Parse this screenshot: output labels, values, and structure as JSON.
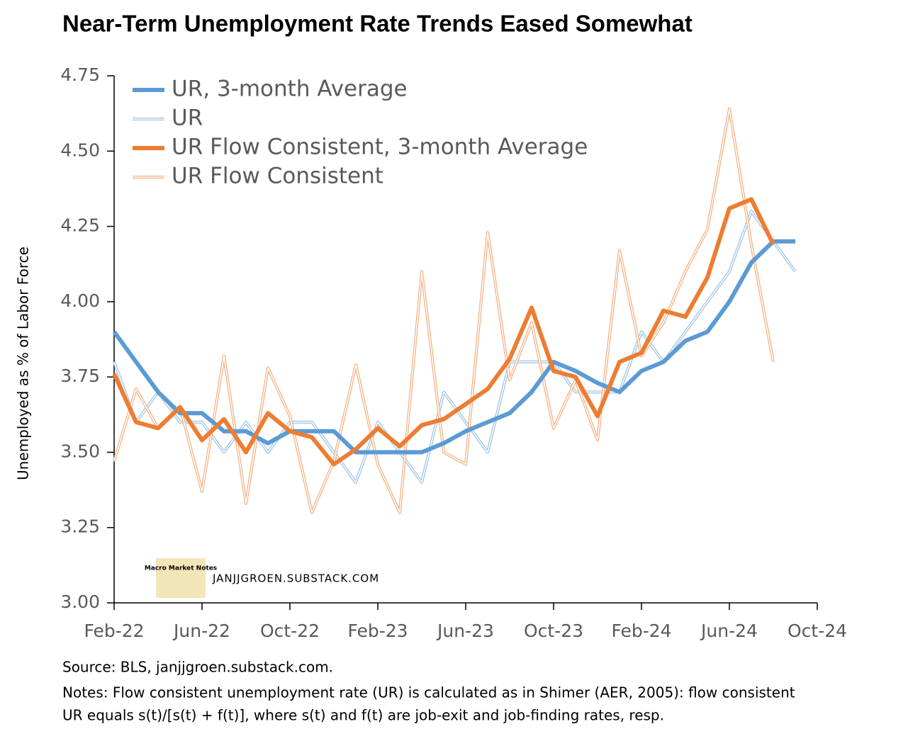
{
  "chart_data": {
    "type": "line",
    "title": "Near-Term Unemployment Rate Trends Eased Somewhat",
    "y_label": "Unemployed as % of Labor Force",
    "categories": [
      "Feb-22",
      null,
      null,
      null,
      "Jun-22",
      null,
      null,
      null,
      "Oct-22",
      null,
      null,
      null,
      "Feb-23",
      null,
      null,
      null,
      "Jun-23",
      null,
      null,
      null,
      "Oct-23",
      null,
      null,
      null,
      "Feb-24",
      null,
      null,
      null,
      "Jun-24",
      null,
      null,
      null,
      "Oct-24"
    ],
    "series": [
      {
        "name": "UR, 3-month Average",
        "color": "#5b9bd5",
        "style": "thick",
        "values": [
          3.9,
          3.8,
          3.7,
          3.63,
          3.63,
          3.57,
          3.57,
          3.53,
          3.57,
          3.57,
          3.57,
          3.5,
          3.5,
          3.5,
          3.5,
          3.53,
          3.57,
          3.6,
          3.63,
          3.7,
          3.8,
          3.77,
          3.73,
          3.7,
          3.77,
          3.8,
          3.87,
          3.9,
          4.0,
          4.13,
          4.2,
          4.2,
          null
        ]
      },
      {
        "name": "UR",
        "color": "#9dc3e6",
        "style": "thin",
        "values": [
          3.8,
          3.6,
          3.7,
          3.6,
          3.6,
          3.5,
          3.6,
          3.5,
          3.6,
          3.6,
          3.5,
          3.4,
          3.6,
          3.5,
          3.4,
          3.7,
          3.6,
          3.5,
          3.8,
          3.8,
          3.8,
          3.7,
          3.7,
          3.7,
          3.9,
          3.8,
          3.9,
          4.0,
          4.1,
          4.3,
          4.2,
          4.1,
          null
        ]
      },
      {
        "name": "UR Flow Consistent, 3-month Average",
        "color": "#ed7d31",
        "style": "thick",
        "values": [
          3.76,
          3.6,
          3.58,
          3.65,
          3.54,
          3.61,
          3.5,
          3.63,
          3.57,
          3.55,
          3.46,
          3.51,
          3.58,
          3.52,
          3.59,
          3.61,
          3.66,
          3.71,
          3.81,
          3.98,
          3.77,
          3.75,
          3.62,
          3.8,
          3.83,
          3.97,
          3.95,
          4.08,
          4.31,
          4.34,
          4.19,
          null,
          null
        ]
      },
      {
        "name": "UR Flow Consistent",
        "color": "#f4b183",
        "style": "thin",
        "values": [
          3.47,
          3.71,
          3.58,
          3.65,
          3.37,
          3.82,
          3.33,
          3.78,
          3.62,
          3.3,
          3.47,
          3.79,
          3.46,
          3.3,
          4.1,
          3.5,
          3.46,
          4.23,
          3.74,
          3.93,
          3.58,
          3.74,
          3.54,
          4.17,
          3.82,
          3.93,
          4.1,
          4.24,
          4.64,
          4.19,
          3.8,
          null,
          null
        ]
      }
    ],
    "ylim": [
      3.0,
      4.75
    ],
    "yticks": [
      {
        "value": 3.0,
        "label": "3.00"
      },
      {
        "value": 3.25,
        "label": "3.25"
      },
      {
        "value": 3.5,
        "label": "3.50"
      },
      {
        "value": 3.75,
        "label": "3.75"
      },
      {
        "value": 4.0,
        "label": "4.00"
      },
      {
        "value": 4.25,
        "label": "4.25"
      },
      {
        "value": 4.5,
        "label": "4.50"
      },
      {
        "value": 4.75,
        "label": "4.75"
      }
    ],
    "legend": "upper left",
    "watermark": "JANJJGROEN.SUBSTACK.COM",
    "logo_text": "Macro Market Notes",
    "source": "Source: BLS, janjjgroen.substack.com.",
    "notes": [
      "Notes: Flow consistent unemployment rate (UR) is calculated as in Shimer (AER, 2005):  flow consistent",
      "UR equals s(t)/[s(t) + f(t)], where s(t) and f(t) are job-exit and job-finding rates, resp."
    ]
  }
}
